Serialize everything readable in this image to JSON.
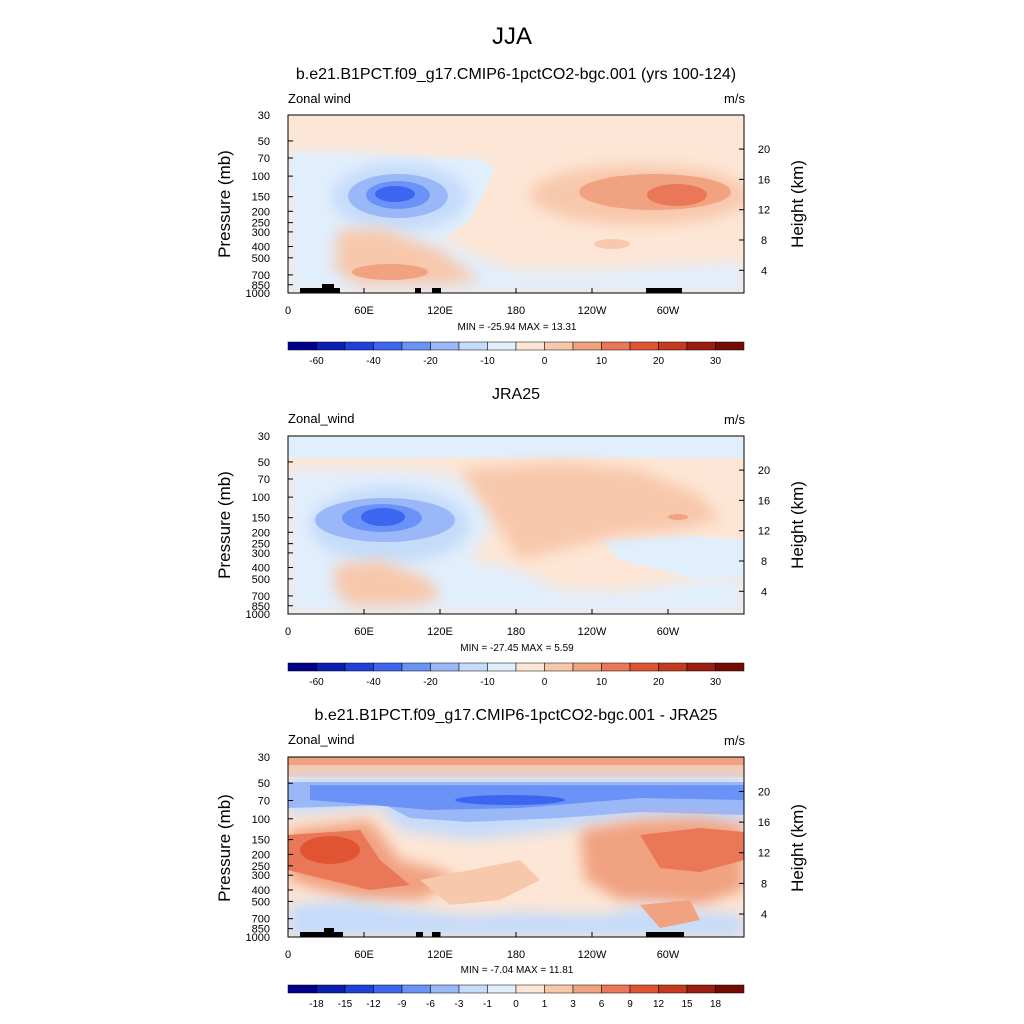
{
  "figure": {
    "title": "JJA"
  },
  "colors": {
    "panel_scale": [
      "#00008a",
      "#0a1fb0",
      "#1f40d9",
      "#3d66f0",
      "#6b93f7",
      "#9ab8f8",
      "#c5dbfa",
      "#e1eefc",
      "#fde6d5",
      "#f8c8ac",
      "#f0a281",
      "#ea7858",
      "#e05432",
      "#c43a1e",
      "#9b1c11",
      "#750c04"
    ],
    "land_mask": "#000000"
  },
  "shared": {
    "ylabel": "Pressure (mb)",
    "y2label": "Height (km)",
    "pressure_ticks": [
      "30",
      "50",
      "70",
      "100",
      "150",
      "200",
      "250",
      "300",
      "400",
      "500",
      "700",
      "850",
      "1000"
    ],
    "height_ticks": [
      "4",
      "8",
      "12",
      "16",
      "20"
    ],
    "lon_ticks": [
      "0",
      "60E",
      "120E",
      "180",
      "120W",
      "60W"
    ]
  },
  "chart_data": [
    {
      "type": "heatmap",
      "title": "b.e21.B1PCT.f09_g17.CMIP6-1pctCO2-bgc.001 (yrs 100-124)",
      "left_label": "Zonal wind",
      "right_label": "m/s",
      "ylabel": "Pressure (mb)",
      "y2label": "Height (km)",
      "stats": "MIN = -25.94  MAX =  13.31",
      "xlim": [
        0,
        355
      ],
      "ylim": [
        1000,
        30
      ],
      "colorbar_labels": [
        "-60",
        "-40",
        "-20",
        "-10",
        "0",
        "10",
        "20",
        "30"
      ],
      "features": [
        {
          "kind": "jet",
          "lon": 80,
          "p": 150,
          "value": -25.94
        },
        {
          "kind": "jet",
          "lon": 300,
          "p": 150,
          "value": 13.31
        },
        {
          "kind": "jet",
          "lon": 75,
          "p": 700,
          "value": 8
        }
      ]
    },
    {
      "type": "heatmap",
      "title": "JRA25",
      "left_label": "Zonal_wind",
      "right_label": "m/s",
      "ylabel": "Pressure (mb)",
      "y2label": "Height (km)",
      "stats": "MIN = -27.45  MAX =   5.59",
      "xlim": [
        0,
        355
      ],
      "ylim": [
        1000,
        30
      ],
      "colorbar_labels": [
        "-60",
        "-40",
        "-20",
        "-10",
        "0",
        "10",
        "20",
        "30"
      ],
      "features": [
        {
          "kind": "jet",
          "lon": 80,
          "p": 150,
          "value": -27.45
        },
        {
          "kind": "jet",
          "lon": 305,
          "p": 150,
          "value": 5.59
        }
      ]
    },
    {
      "type": "heatmap",
      "title": "b.e21.B1PCT.f09_g17.CMIP6-1pctCO2-bgc.001 - JRA25",
      "left_label": "Zonal_wind",
      "right_label": "m/s",
      "ylabel": "Pressure (mb)",
      "y2label": "Height (km)",
      "stats": "MIN =  -7.04  MAX =  11.81",
      "xlim": [
        0,
        355
      ],
      "ylim": [
        1000,
        30
      ],
      "colorbar_labels": [
        "-18",
        "-15",
        "-12",
        "-9",
        "-6",
        "-3",
        "-1",
        "0",
        "1",
        "3",
        "6",
        "9",
        "12",
        "15",
        "18"
      ],
      "features": [
        {
          "kind": "band",
          "lon": 175,
          "p": 65,
          "value": -7.04
        },
        {
          "kind": "jet",
          "lon": 25,
          "p": 150,
          "value": 11.81
        },
        {
          "kind": "jet",
          "lon": 295,
          "p": 180,
          "value": 8
        }
      ]
    }
  ]
}
